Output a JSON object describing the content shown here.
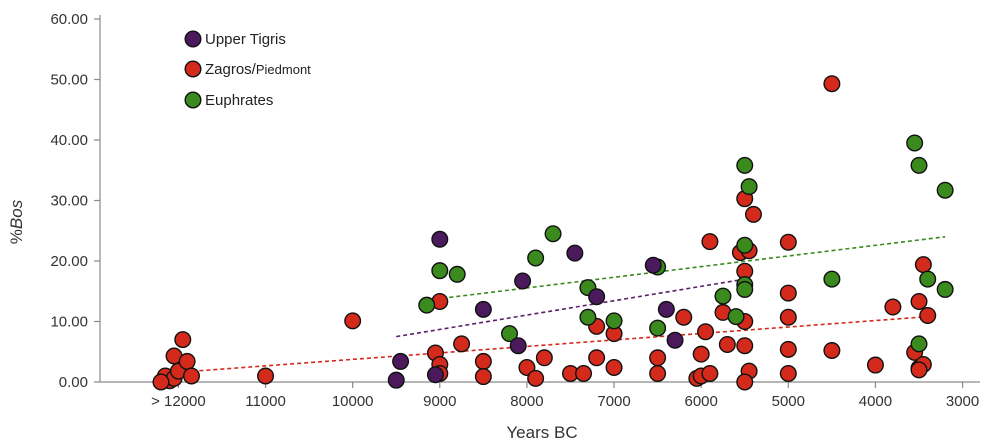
{
  "chart_data": {
    "type": "scatter",
    "xlabel": "Years BC",
    "ylabel_prefix": "%",
    "ylabel_italic": "Bos",
    "x_axis_reversed": true,
    "xlim": [
      12900,
      2800
    ],
    "ylim": [
      0,
      60
    ],
    "x_ticks": [
      {
        "value": 12000,
        "label": "> 12000"
      },
      {
        "value": 11000,
        "label": "11000"
      },
      {
        "value": 10000,
        "label": "10000"
      },
      {
        "value": 9000,
        "label": "9000"
      },
      {
        "value": 8000,
        "label": "8000"
      },
      {
        "value": 7000,
        "label": "7000"
      },
      {
        "value": 6000,
        "label": "6000"
      },
      {
        "value": 5000,
        "label": "5000"
      },
      {
        "value": 4000,
        "label": "4000"
      },
      {
        "value": 3000,
        "label": "3000"
      }
    ],
    "y_ticks": [
      {
        "value": 0,
        "label": "0.00"
      },
      {
        "value": 10,
        "label": "10.00"
      },
      {
        "value": 20,
        "label": "20.00"
      },
      {
        "value": 30,
        "label": "30.00"
      },
      {
        "value": 40,
        "label": "40.00"
      },
      {
        "value": 50,
        "label": "50.00"
      },
      {
        "value": 60,
        "label": "60.00"
      }
    ],
    "grid": false,
    "legend_position": "top-left",
    "series": [
      {
        "name_main": "Upper Tigris",
        "name_small": "",
        "color": "#4b1a5c",
        "trend_color": "#5a1f6e",
        "trend": [
          [
            9500,
            7.5
          ],
          [
            5500,
            17.0
          ]
        ],
        "points": [
          [
            9450,
            3.4
          ],
          [
            9500,
            0.3
          ],
          [
            9050,
            1.2
          ],
          [
            9000,
            23.6
          ],
          [
            8500,
            12.0
          ],
          [
            8050,
            16.7
          ],
          [
            8100,
            6.0
          ],
          [
            7450,
            21.3
          ],
          [
            7200,
            14.1
          ],
          [
            6550,
            19.3
          ],
          [
            6300,
            6.9
          ],
          [
            6400,
            12.0
          ]
        ]
      },
      {
        "name_main": "Zagros/",
        "name_small": "Piedmont",
        "color": "#d42a1c",
        "trend_color": "#d42a1c",
        "trend": [
          [
            12000,
            1.6
          ],
          [
            3400,
            10.8
          ]
        ],
        "points": [
          [
            12100,
            0.2
          ],
          [
            12150,
            1.0
          ],
          [
            12050,
            0.6
          ],
          [
            12200,
            0.0
          ],
          [
            12050,
            4.3
          ],
          [
            12000,
            1.8
          ],
          [
            11900,
            3.4
          ],
          [
            11850,
            1.0
          ],
          [
            11950,
            7.0
          ],
          [
            11000,
            1.0
          ],
          [
            10000,
            10.1
          ],
          [
            9050,
            4.8
          ],
          [
            9000,
            13.3
          ],
          [
            9000,
            2.9
          ],
          [
            9000,
            1.4
          ],
          [
            8750,
            6.3
          ],
          [
            8500,
            3.4
          ],
          [
            8500,
            0.9
          ],
          [
            8000,
            2.4
          ],
          [
            7900,
            0.6
          ],
          [
            7800,
            4.0
          ],
          [
            7500,
            1.4
          ],
          [
            7350,
            1.4
          ],
          [
            7200,
            9.2
          ],
          [
            7200,
            4.0
          ],
          [
            7000,
            8.0
          ],
          [
            7000,
            2.4
          ],
          [
            6500,
            4.0
          ],
          [
            6500,
            1.4
          ],
          [
            6200,
            10.7
          ],
          [
            6050,
            0.6
          ],
          [
            6000,
            1.0
          ],
          [
            6000,
            4.6
          ],
          [
            5950,
            8.3
          ],
          [
            5900,
            23.2
          ],
          [
            5900,
            1.4
          ],
          [
            5750,
            11.5
          ],
          [
            5700,
            6.2
          ],
          [
            5550,
            21.4
          ],
          [
            5500,
            30.3
          ],
          [
            5500,
            18.3
          ],
          [
            5500,
            10.0
          ],
          [
            5450,
            21.7
          ],
          [
            5500,
            6.0
          ],
          [
            5400,
            27.7
          ],
          [
            5450,
            1.8
          ],
          [
            5500,
            0.0
          ],
          [
            5000,
            23.1
          ],
          [
            5000,
            14.7
          ],
          [
            5000,
            10.7
          ],
          [
            5000,
            5.4
          ],
          [
            5000,
            1.4
          ],
          [
            4500,
            49.3
          ],
          [
            4500,
            5.2
          ],
          [
            4000,
            2.8
          ],
          [
            3800,
            12.4
          ],
          [
            3550,
            4.9
          ],
          [
            3500,
            13.3
          ],
          [
            3450,
            19.4
          ],
          [
            3400,
            11.0
          ],
          [
            3500,
            2.3
          ],
          [
            3450,
            2.9
          ],
          [
            3500,
            2.0
          ]
        ]
      },
      {
        "name_main": "Euphrates",
        "name_small": "",
        "color": "#3a8a1e",
        "trend_color": "#3a8a1e",
        "trend": [
          [
            9050,
            13.7
          ],
          [
            3200,
            24.0
          ]
        ],
        "points": [
          [
            9150,
            12.7
          ],
          [
            9000,
            18.4
          ],
          [
            8800,
            17.8
          ],
          [
            8200,
            8.0
          ],
          [
            7900,
            20.5
          ],
          [
            7700,
            24.5
          ],
          [
            7300,
            15.6
          ],
          [
            7300,
            10.7
          ],
          [
            7000,
            10.1
          ],
          [
            6500,
            19.0
          ],
          [
            6500,
            8.9
          ],
          [
            5750,
            14.2
          ],
          [
            5600,
            10.8
          ],
          [
            5500,
            35.8
          ],
          [
            5450,
            32.3
          ],
          [
            5500,
            22.6
          ],
          [
            5500,
            16.1
          ],
          [
            5500,
            15.3
          ],
          [
            4500,
            17.0
          ],
          [
            3550,
            39.5
          ],
          [
            3500,
            35.8
          ],
          [
            3200,
            31.7
          ],
          [
            3500,
            6.3
          ],
          [
            3400,
            17.0
          ],
          [
            3200,
            15.3
          ]
        ]
      }
    ]
  }
}
